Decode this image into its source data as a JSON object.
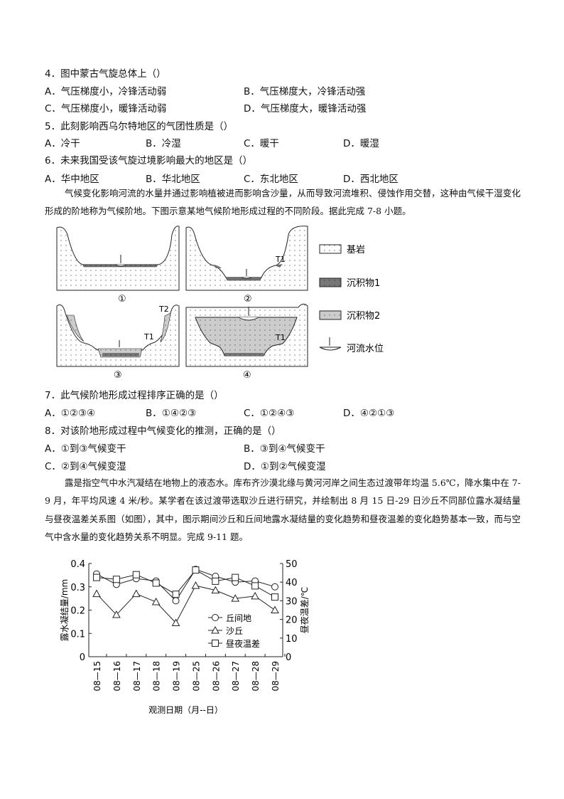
{
  "questions": [
    {
      "stem": "4．图中蒙古气旋总体上（）",
      "options": [
        "A．气压梯度小，冷锋活动弱",
        "B．气压梯度大，冷锋活动强",
        "C．气压梯度小，暖锋活动弱",
        "D．气压梯度大，暖锋活动强"
      ]
    },
    {
      "stem": "5．此刻影响西乌尔特地区的气团性质是（）",
      "options": [
        "A．冷干",
        "B．冷湿",
        "C．暖干",
        "D．暖湿"
      ]
    },
    {
      "stem": "6．未来我国受该气旋过境影响最大的地区是（）",
      "options": [
        "A．华中地区",
        "B．华北地区",
        "C．东北地区",
        "D．西北地区"
      ]
    },
    {
      "stem": "7．此气候阶地形成过程排序正确的是（）",
      "options": [
        "A．①②③④",
        "B．①④②③",
        "C．①②④③",
        "D．④②①③"
      ]
    },
    {
      "stem": "8．对该阶地形成过程中气候变化的推测，正确的是（）",
      "options": [
        "A．①到③气候变干",
        "B．③到④气候变干",
        "C．②到④气候变湿",
        "D．①到②气候变湿"
      ]
    }
  ],
  "passage1": "气候变化影响河流的水量并通过影响植被进而影响含沙量，从而导致河流堆积、侵蚀作用交替，这种由气候干湿变化形成的阶地称为气候阶地。下图示意某地气候阶地形成过程的不同阶段。据此完成 7-8 小题。",
  "diagram": {
    "panel_labels": [
      "①",
      "②",
      "③",
      "④"
    ],
    "terrace_labels": {
      "t1": "T1",
      "t2": "T2"
    },
    "legend": [
      "基岩",
      "沉积物1",
      "沉积物2",
      "河流水位"
    ]
  },
  "passage2": "露是指空气中水汽凝结在地物上的液态水。库布齐沙漠北缘与黄河河岸之间生态过渡带年均温 5.6℃，降水集中在 7-9 月，年平均风速 4 米/秒。某学者在该过渡带选取沙丘进行研究，并绘制出 8 月 15 日-29 日沙丘不同部位露水凝结量与昼夜温差关系图（如图），其中，图示期间沙丘和丘间地露水凝结量的变化趋势和昼夜温差的变化趋势基本一致，而与空气中含水量的变化趋势关系不明显。完成 9-11 题。",
  "chart_data": {
    "type": "line",
    "categories": [
      "08—15",
      "08—16",
      "08—17",
      "08—18",
      "08—19",
      "08—25",
      "08—26",
      "08—27",
      "08—28",
      "08—29"
    ],
    "xlabel": "观测日期（月--日）",
    "ylabel": "露水凝结量/mm",
    "ylim": [
      0,
      0.4
    ],
    "yticks": [
      "0",
      "0.1",
      "0.2",
      "0.3",
      "0.4"
    ],
    "y2label": "昼夜温差/℃",
    "y2lim": [
      0,
      50
    ],
    "y2ticks": [
      "0",
      "10",
      "20",
      "30",
      "40",
      "50"
    ],
    "legend_position": "right-middle",
    "series": [
      {
        "name": "丘间地",
        "marker": "circle",
        "axis": "left",
        "values": [
          0.355,
          0.31,
          0.335,
          0.325,
          0.24,
          0.375,
          0.345,
          0.32,
          0.325,
          0.3
        ]
      },
      {
        "name": "沙丘",
        "marker": "triangle",
        "axis": "left",
        "values": [
          0.27,
          0.18,
          0.27,
          0.235,
          0.145,
          0.305,
          0.285,
          0.25,
          0.26,
          0.2
        ]
      },
      {
        "name": "昼夜温差",
        "marker": "square",
        "axis": "right",
        "values": [
          42.5,
          41.5,
          44,
          39.5,
          33.5,
          46.5,
          40.5,
          42.5,
          38,
          32
        ]
      }
    ]
  }
}
